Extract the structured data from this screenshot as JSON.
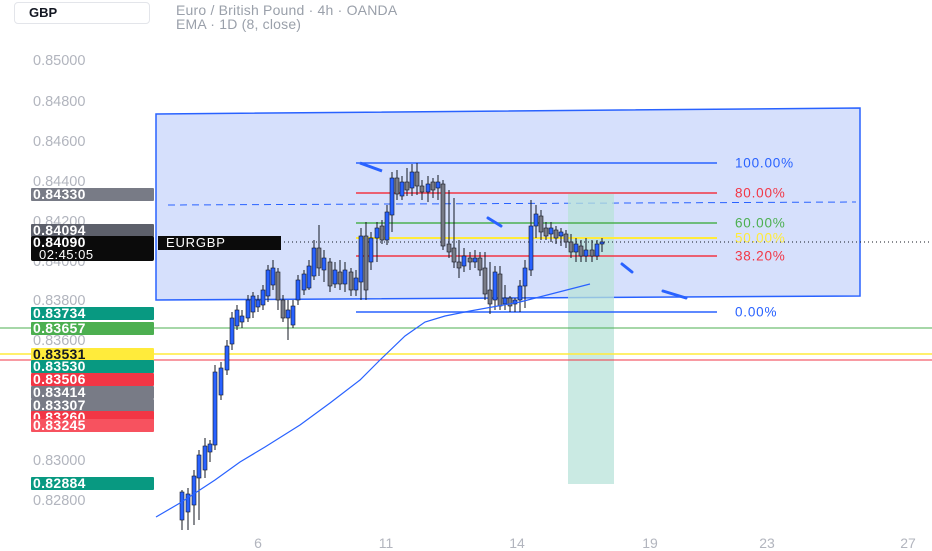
{
  "header": {
    "symbol_button": "GBP",
    "title": "Euro / British Pound · 4h · OANDA",
    "indicator": "EMA · 1D (8, close)"
  },
  "price_scale": {
    "labels": [
      "0.85000",
      "0.84800",
      "0.84600",
      "0.84400",
      "0.84200",
      "0.84000",
      "0.83800",
      "0.83600",
      "0.83000",
      "0.82800"
    ],
    "badges": [
      {
        "value": "0.84330",
        "color": "#787b86"
      },
      {
        "value": "0.84094",
        "color": "#5d606b"
      },
      {
        "value": "0.83734",
        "color": "#089981"
      },
      {
        "value": "0.83657",
        "color": "#4caf50"
      },
      {
        "value": "0.83531",
        "color": "#ffeb3b",
        "text_color": "#131722"
      },
      {
        "value": "0.83530",
        "color": "#089981"
      },
      {
        "value": "0.83506",
        "color": "#f23645"
      },
      {
        "value": "0.83414",
        "color": "#787b86"
      },
      {
        "value": "0.83307",
        "color": "#787b86"
      },
      {
        "value": "0.83260",
        "color": "#f23645"
      },
      {
        "value": "0.83245",
        "color": "#f7525f"
      },
      {
        "value": "0.82884",
        "color": "#089981"
      }
    ],
    "current_price": "0.84090",
    "countdown": "02:45:05",
    "symbol_tag": "EURGBP"
  },
  "time_axis": {
    "labels": [
      "6",
      "11",
      "14",
      "19",
      "23",
      "27"
    ]
  },
  "fib_levels": [
    {
      "label": "100.00%",
      "color": "#2962ff"
    },
    {
      "label": "80.00%",
      "color": "#f23645"
    },
    {
      "label": "60.00%",
      "color": "#4caf50"
    },
    {
      "label": "50.00%",
      "color": "#ffeb3b"
    },
    {
      "label": "38.20%",
      "color": "#f23645"
    },
    {
      "label": "0.00%",
      "color": "#2962ff"
    }
  ],
  "colors": {
    "candle_up": "#2962ff",
    "candle_down": "#787b86",
    "rectangle_fill": "#d6e0fc",
    "rectangle_border": "#2962ff",
    "target_zone": "#b8e3d9"
  }
}
